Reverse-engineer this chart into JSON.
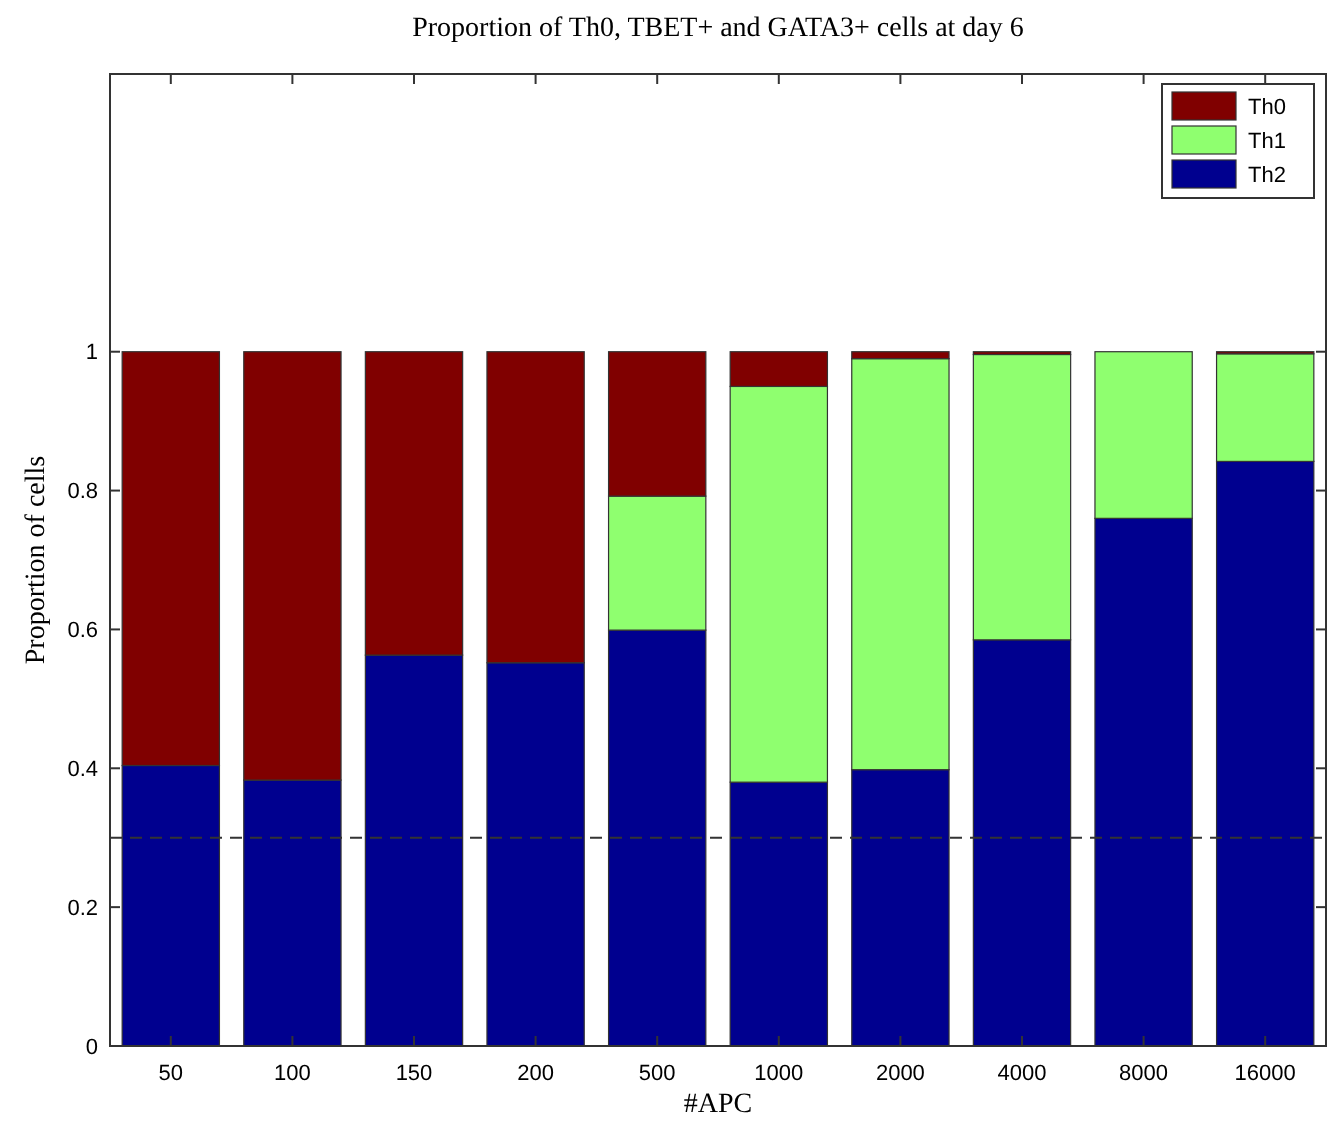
{
  "chart_data": {
    "type": "bar",
    "stacked": true,
    "title": "Proportion of Th0, TBET+ and GATA3+ cells at day 6",
    "xlabel": "#APC",
    "ylabel": "Proportion of cells",
    "categories": [
      "50",
      "100",
      "150",
      "200",
      "500",
      "1000",
      "2000",
      "4000",
      "8000",
      "16000"
    ],
    "series": [
      {
        "name": "Th2",
        "color": "#00008f",
        "values": [
          0.404,
          0.383,
          0.563,
          0.552,
          0.599,
          0.38,
          0.398,
          0.585,
          0.76,
          0.842
        ]
      },
      {
        "name": "Th1",
        "color": "#8fff6f",
        "values": [
          0,
          0,
          0,
          0,
          0.193,
          0.57,
          0.592,
          0.411,
          0.24,
          0.155
        ]
      },
      {
        "name": "Th0",
        "color": "#800000",
        "values": [
          0.596,
          0.617,
          0.437,
          0.448,
          0.208,
          0.05,
          0.01,
          0.004,
          0,
          0.003
        ]
      }
    ],
    "ylim": [
      0,
      1.4
    ],
    "yticks": [
      0,
      0.2,
      0.4,
      0.6,
      0.8,
      1
    ],
    "ref_lines": [
      {
        "axis": "y",
        "value": 0.3,
        "line_style": "dashed",
        "color": "#333333"
      }
    ],
    "legend": "top right",
    "grid": false
  }
}
